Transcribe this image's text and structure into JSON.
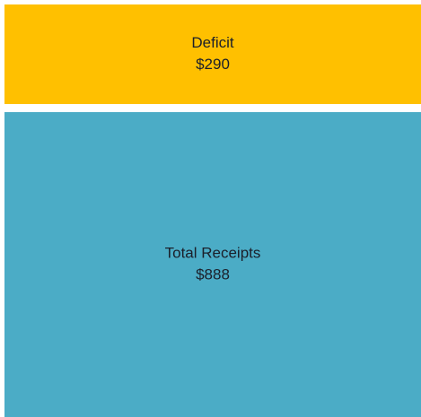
{
  "chart_data": {
    "type": "treemap",
    "categories": [
      "Deficit",
      "Total Receipts"
    ],
    "values": [
      290,
      888
    ],
    "value_labels": [
      "$290",
      "$888"
    ],
    "colors": [
      "#ffc000",
      "#4bacc6"
    ]
  }
}
